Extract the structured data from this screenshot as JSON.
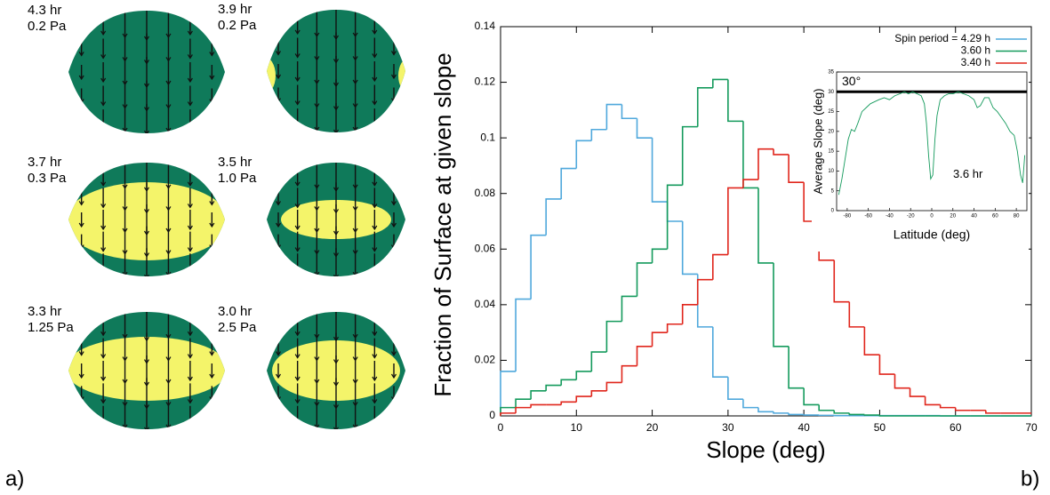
{
  "panel_a": {
    "label": "a)",
    "shapes": [
      {
        "period": "4.3 hr",
        "pressure": "0.2 Pa"
      },
      {
        "period": "3.9 hr",
        "pressure": "0.2 Pa"
      },
      {
        "period": "3.7 hr",
        "pressure": "0.3 Pa"
      },
      {
        "period": "3.5 hr",
        "pressure": "1.0 Pa"
      },
      {
        "period": "3.3 hr",
        "pressure": "1.25 Pa"
      },
      {
        "period": "3.0 hr",
        "pressure": "2.5 Pa"
      }
    ]
  },
  "panel_b": {
    "label": "b)"
  },
  "chart_data": [
    {
      "type": "histogram",
      "xlabel": "Slope (deg)",
      "ylabel": "Fraction of Surface at given slope",
      "bins": [
        0,
        2,
        4,
        6,
        8,
        10,
        12,
        14,
        16,
        18,
        20,
        22,
        24,
        26,
        28,
        30,
        32,
        34,
        36,
        38,
        40,
        42,
        44,
        46,
        48,
        50,
        52,
        54,
        56,
        58,
        60,
        62,
        64,
        66,
        68,
        70
      ],
      "xlim": [
        0,
        70
      ],
      "xticks": [
        0,
        10,
        20,
        30,
        40,
        50,
        60,
        70
      ],
      "ylim": [
        0,
        0.14
      ],
      "yticks": [
        0,
        0.02,
        0.04,
        0.06,
        0.08,
        0.1,
        0.12,
        0.14
      ],
      "legend": "upper right",
      "series": [
        {
          "name": "Spin period = 4.29 h",
          "color": "#4fa8dc",
          "values": [
            0.016,
            0.042,
            0.065,
            0.078,
            0.089,
            0.099,
            0.103,
            0.112,
            0.107,
            0.1,
            0.077,
            0.07,
            0.051,
            0.032,
            0.014,
            0.006,
            0.003,
            0.0015,
            0.001,
            0.0005,
            0.0003,
            0.0002,
            0.0001,
            0.0001,
            0.0001,
            0.0001,
            0.0001,
            0.0001,
            0.0001,
            0,
            0,
            0,
            0,
            0,
            0
          ]
        },
        {
          "name": "3.60 h",
          "color": "#149a5c",
          "values": [
            0.003,
            0.006,
            0.009,
            0.011,
            0.013,
            0.016,
            0.023,
            0.034,
            0.043,
            0.055,
            0.06,
            0.083,
            0.104,
            0.118,
            0.121,
            0.106,
            0.082,
            0.055,
            0.025,
            0.01,
            0.004,
            0.002,
            0.001,
            0.0005,
            0.0003,
            0,
            0,
            0,
            0,
            0,
            0,
            0,
            0,
            0,
            0
          ]
        },
        {
          "name": "3.40 h",
          "color": "#e0261c",
          "values": [
            0.001,
            0.003,
            0.004,
            0.004,
            0.005,
            0.007,
            0.009,
            0.012,
            0.018,
            0.025,
            0.03,
            0.033,
            0.04,
            0.049,
            0.058,
            0.082,
            0.085,
            0.096,
            0.094,
            0.084,
            0.07,
            0.056,
            0.041,
            0.032,
            0.022,
            0.015,
            0.01,
            0.007,
            0.004,
            0.003,
            0.002,
            0.002,
            0.001,
            0.001,
            0.001
          ]
        }
      ]
    },
    {
      "type": "line",
      "xlabel": "Latitude (deg)",
      "ylabel": "Average Slope (deg)",
      "annotation": "3.6 hr",
      "reference_line": {
        "value": 30,
        "label": "30°"
      },
      "xlim": [
        -90,
        90
      ],
      "xticks": [
        -80,
        -60,
        -40,
        -20,
        0,
        20,
        40,
        60,
        80
      ],
      "ylim": [
        0,
        35
      ],
      "yticks": [
        0,
        5,
        10,
        15,
        20,
        25,
        30,
        35
      ],
      "x": [
        -88,
        -85,
        -82,
        -79,
        -76,
        -73,
        -70,
        -66,
        -62,
        -58,
        -54,
        -50,
        -45,
        -40,
        -35,
        -30,
        -26,
        -22,
        -18,
        -14,
        -10,
        -7,
        -5,
        -3,
        -1,
        1,
        3,
        5,
        8,
        12,
        16,
        20,
        25,
        30,
        35,
        40,
        43,
        46,
        50,
        54,
        58,
        62,
        66,
        70,
        74,
        78,
        81,
        84,
        86,
        88
      ],
      "series": [
        {
          "color": "#149a5c",
          "values": [
            4,
            8,
            13,
            18,
            20.5,
            20,
            22,
            25,
            26,
            27,
            27.5,
            28,
            28.5,
            28,
            29,
            29.5,
            30,
            29.5,
            30,
            29.5,
            29,
            27,
            22,
            14,
            8,
            9,
            18,
            24,
            28,
            29,
            29.5,
            29.5,
            30,
            29.5,
            29,
            28,
            26,
            26.5,
            28.5,
            28.5,
            26,
            25,
            23.5,
            22,
            20,
            19,
            15,
            9,
            7,
            14
          ]
        }
      ]
    }
  ]
}
